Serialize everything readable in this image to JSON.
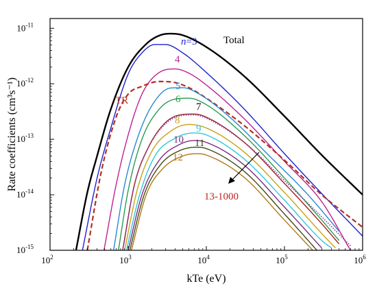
{
  "chart_data": {
    "type": "line",
    "xlabel": "kTe (eV)",
    "ylabel": "Rate coefficients (cm³s⁻¹)",
    "xscale": "log",
    "yscale": "log",
    "xlim": [
      100,
      1000000
    ],
    "ylim": [
      1e-15,
      1.5e-11
    ],
    "grid": false,
    "legend": "none",
    "x_ticks": [
      {
        "value": 100,
        "base": "10",
        "exp": "2"
      },
      {
        "value": 1000,
        "base": "10",
        "exp": "3"
      },
      {
        "value": 10000,
        "base": "10",
        "exp": "4"
      },
      {
        "value": 100000,
        "base": "10",
        "exp": "5"
      },
      {
        "value": 1000000,
        "base": "10",
        "exp": "6"
      }
    ],
    "y_ticks": [
      {
        "value": 1e-15,
        "base": "10",
        "exp": "-15"
      },
      {
        "value": 1e-14,
        "base": "10",
        "exp": "-14"
      },
      {
        "value": 1e-13,
        "base": "10",
        "exp": "-13"
      },
      {
        "value": 1e-12,
        "base": "10",
        "exp": "-12"
      },
      {
        "value": 1e-11,
        "base": "10",
        "exp": "-11"
      }
    ],
    "series": [
      {
        "name": "Total",
        "color": "#000000",
        "style": "solid",
        "x": [
          215,
          300,
          400,
          600,
          1000,
          1700,
          2500,
          3500,
          5000,
          10000,
          30000,
          100000,
          300000,
          1000000
        ],
        "y": [
          1e-15,
          1.1e-14,
          5e-14,
          3.5e-13,
          2e-12,
          5.2e-12,
          7.4e-12,
          8e-12,
          7.5e-12,
          4.6e-12,
          1.4e-12,
          2.6e-13,
          5.2e-14,
          1e-14
        ]
      },
      {
        "name": "3",
        "color": "#1f1fd0",
        "style": "solid",
        "x": [
          260,
          400,
          600,
          1000,
          1500,
          2200,
          3000,
          5000,
          10000,
          30000,
          100000,
          300000,
          1000000
        ],
        "y": [
          1e-15,
          2e-14,
          1.6e-13,
          1.5e-12,
          3.6e-12,
          5.1e-12,
          5.1e-12,
          3.6e-12,
          1.6e-12,
          3.6e-13,
          5.5e-14,
          1.05e-14,
          1.8e-15
        ]
      },
      {
        "name": "4",
        "color": "#c02090",
        "style": "solid",
        "x": [
          490,
          700,
          1000,
          1500,
          2500,
          4000,
          6000,
          10000,
          30000,
          100000,
          300000,
          700000
        ],
        "y": [
          1e-15,
          1.5e-14,
          1.2e-13,
          6.5e-13,
          1.6e-12,
          1.85e-12,
          1.55e-12,
          9.5e-13,
          2.4e-13,
          4e-14,
          7.5e-15,
          1e-15
        ]
      },
      {
        "name": "TR",
        "color": "#b03020",
        "style": "dashed",
        "x": [
          300,
          450,
          700,
          1000,
          1500,
          2500,
          4000,
          6000,
          10000,
          30000,
          100000,
          300000,
          1000000
        ],
        "y": [
          1e-15,
          2.5e-14,
          2.5e-13,
          6.5e-13,
          9e-13,
          1.1e-12,
          1.05e-12,
          8.5e-13,
          5.5e-13,
          1.8e-13,
          4.2e-14,
          1e-14,
          2.6e-15
        ]
      },
      {
        "name": "5",
        "color": "#2888d0",
        "style": "solid",
        "x": [
          650,
          900,
          1300,
          2000,
          3500,
          5000,
          8000,
          20000,
          60000,
          200000,
          500000
        ],
        "y": [
          1e-15,
          1.5e-14,
          1e-13,
          4e-13,
          8.4e-13,
          8.5e-13,
          6.6e-13,
          2.5e-13,
          5.5e-14,
          1e-14,
          2.2e-15
        ]
      },
      {
        "name": "6",
        "color": "#2a9a50",
        "style": "solid",
        "x": [
          750,
          1000,
          1500,
          2500,
          4000,
          6000,
          10000,
          30000,
          100000,
          300000,
          500000
        ],
        "y": [
          1e-15,
          1.2e-14,
          1e-13,
          3.5e-13,
          5.3e-13,
          5.5e-13,
          4.2e-13,
          1.2e-13,
          2e-14,
          3.5e-15,
          1.5e-15
        ]
      },
      {
        "name": "7",
        "color": "#a01e1e",
        "style": "solid",
        "x": [
          850,
          1200,
          1800,
          3000,
          5000,
          7000,
          10000,
          30000,
          100000,
          300000,
          500000
        ],
        "y": [
          1e-15,
          1.5e-14,
          7e-14,
          2e-13,
          2.8e-13,
          2.85e-13,
          2.5e-13,
          9e-14,
          1.6e-14,
          3e-15,
          1.3e-15
        ]
      },
      {
        "name": "13-1000",
        "color": "#8a3fa0",
        "style": "dotted",
        "x": [
          850,
          1200,
          1800,
          3000,
          5000,
          7000,
          10000,
          30000,
          100000,
          300000,
          700000
        ],
        "y": [
          1e-15,
          1.5e-14,
          7e-14,
          1.9e-13,
          2.7e-13,
          2.75e-13,
          2.4e-13,
          9e-14,
          1.8e-14,
          4e-15,
          1.2e-15
        ]
      },
      {
        "name": "8",
        "color": "#c8a018",
        "style": "solid",
        "x": [
          900,
          1300,
          2000,
          3500,
          6000,
          10000,
          30000,
          100000,
          300000,
          450000
        ],
        "y": [
          1e-15,
          1.2e-14,
          6e-14,
          1.4e-13,
          1.85e-13,
          1.6e-13,
          6e-14,
          1.1e-14,
          2e-15,
          1.1e-15
        ]
      },
      {
        "name": "9",
        "color": "#30c8d8",
        "style": "solid",
        "x": [
          950,
          1400,
          2200,
          4000,
          7000,
          10000,
          30000,
          100000,
          300000,
          400000
        ],
        "y": [
          1e-15,
          1e-14,
          5e-14,
          1.05e-13,
          1.3e-13,
          1.2e-13,
          4.5e-14,
          8e-15,
          1.5e-15,
          1.1e-15
        ]
      },
      {
        "name": "10",
        "color": "#7a2a80",
        "style": "solid",
        "x": [
          1000,
          1500,
          2500,
          4500,
          7000,
          10000,
          30000,
          100000,
          300000
        ],
        "y": [
          1e-15,
          1e-14,
          4.2e-14,
          8e-14,
          9.5e-14,
          8.8e-14,
          3.5e-14,
          6e-15,
          1.1e-15
        ]
      },
      {
        "name": "11",
        "color": "#404a18",
        "style": "solid",
        "x": [
          1050,
          1600,
          2600,
          4500,
          7500,
          10000,
          30000,
          100000,
          260000
        ],
        "y": [
          1e-15,
          1e-14,
          3.5e-14,
          6.2e-14,
          7.2e-14,
          6.8e-14,
          2.7e-14,
          4.5e-15,
          1e-15
        ]
      },
      {
        "name": "12",
        "color": "#b07810",
        "style": "solid",
        "x": [
          1100,
          1700,
          2800,
          5000,
          7500,
          10000,
          30000,
          100000,
          230000
        ],
        "y": [
          1e-15,
          1e-14,
          3e-14,
          5e-14,
          5.5e-14,
          5.2e-14,
          2.1e-14,
          3.5e-15,
          1e-15
        ]
      }
    ],
    "annotations": [
      {
        "id": "total",
        "text": "Total",
        "color": "#000000"
      },
      {
        "id": "n3",
        "text": "n=3",
        "color": "#1f1fd0"
      },
      {
        "id": "n4",
        "text": "4",
        "color": "#c02090"
      },
      {
        "id": "tr",
        "text": "TR",
        "color": "#b03020"
      },
      {
        "id": "n5",
        "text": "5",
        "color": "#2888d0"
      },
      {
        "id": "n6",
        "text": "6",
        "color": "#2a9a50"
      },
      {
        "id": "n7",
        "text": "7",
        "color": "#000000"
      },
      {
        "id": "n8",
        "text": "8",
        "color": "#c8a018"
      },
      {
        "id": "n9",
        "text": "9",
        "color": "#30c8d8"
      },
      {
        "id": "n10",
        "text": "10",
        "color": "#7a2a80"
      },
      {
        "id": "n11",
        "text": "11",
        "color": "#404a18"
      },
      {
        "id": "n12",
        "text": "12",
        "color": "#b07810"
      },
      {
        "id": "range",
        "text": "13-1000",
        "color": "#c02020"
      }
    ]
  }
}
